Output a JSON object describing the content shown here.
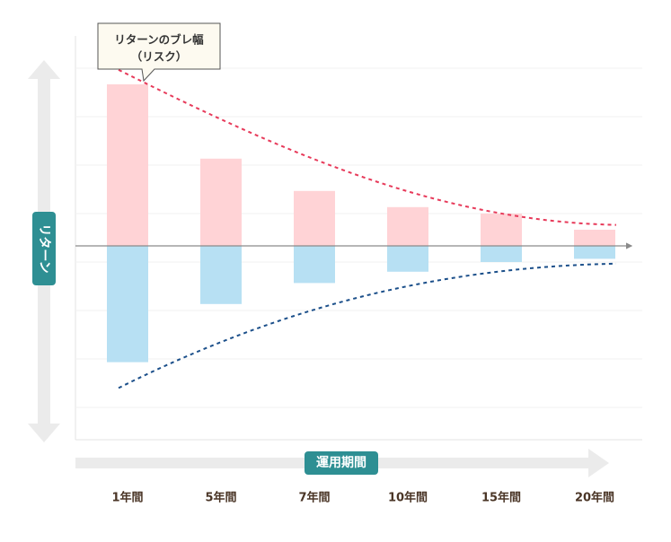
{
  "chart_data": {
    "type": "bar",
    "categories": [
      "1年間",
      "5年間",
      "7年間",
      "10年間",
      "15年間",
      "20年間"
    ],
    "series": [
      {
        "values": [
          10,
          5.4,
          3.4,
          2.4,
          2.0,
          1.0
        ]
      },
      {
        "values": [
          -7.2,
          -3.6,
          -2.3,
          -1.6,
          -1.0,
          -0.8
        ]
      }
    ],
    "upper_curve": [
      10.9,
      1.3
    ],
    "lower_curve": [
      -8.8,
      -1.1
    ],
    "ylim": [
      -12,
      13
    ],
    "ylabel": "リターン",
    "xlabel": "運用期間",
    "annotation": "リターンのブレ幅\n（リスク）",
    "grid": true,
    "colors": {
      "positive_bar": "#ffd3d6",
      "negative_bar": "#b7e0f3",
      "upper_curve": "#e73a5a",
      "lower_curve": "#1b4f8a",
      "badge": "#2e8f93",
      "big_arrow": "#ebebeb",
      "axis": "#8a8a8a",
      "grid": "#f1f1f1",
      "tick_text": "#4a3526",
      "callout_bg": "#fdfaf0"
    }
  }
}
